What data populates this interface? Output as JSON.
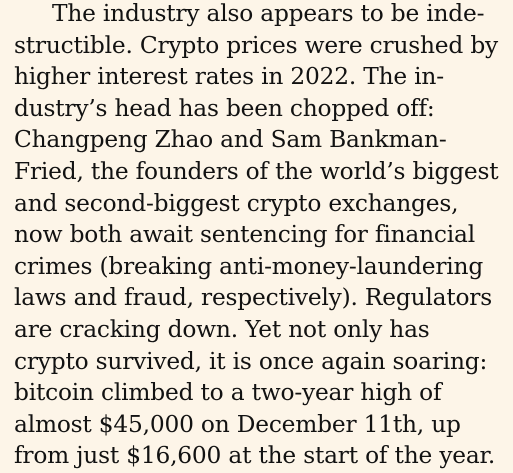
{
  "article": {
    "lines": [
      "The industry also appears to be inde-",
      "structible. Crypto prices were crushed by",
      "higher interest rates in 2022. The in-",
      "dustry’s head has been chopped off:",
      "Changpeng Zhao and Sam Bankman-",
      "Fried, the founders of the world’s biggest",
      "and second-biggest crypto exchanges,",
      "now both await sentencing for financial",
      "crimes (breaking anti-money-laundering",
      "laws and fraud, respectively). Regulators",
      "are cracking down. Yet not only has",
      "crypto survived, it is once again soaring:",
      "bitcoin climbed to a two-year high of",
      "almost $45,000 on December 11th, up",
      "from just $16,600 at the start of the year."
    ]
  }
}
